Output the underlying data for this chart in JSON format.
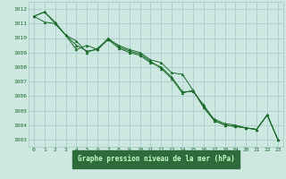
{
  "title": "Graphe pression niveau de la mer (hPa)",
  "bg_color": "#cce8e0",
  "plot_bg": "#cce8e0",
  "grid_color": "#aacccc",
  "line_color": "#1a6b2a",
  "marker_color": "#1a6b2a",
  "label_bg": "#2d6b3a",
  "label_fg": "#ccffcc",
  "xlim": [
    -0.5,
    23.5
  ],
  "ylim": [
    1002.5,
    1012.5
  ],
  "yticks": [
    1003,
    1004,
    1005,
    1006,
    1007,
    1008,
    1009,
    1010,
    1011,
    1012
  ],
  "xticks": [
    0,
    1,
    2,
    3,
    4,
    5,
    6,
    7,
    8,
    9,
    10,
    11,
    12,
    13,
    14,
    15,
    16,
    17,
    18,
    19,
    20,
    21,
    22,
    23
  ],
  "series": [
    [
      1011.5,
      1011.8,
      1011.1,
      1010.2,
      1009.8,
      1009.0,
      1009.3,
      1009.9,
      1009.5,
      1009.2,
      1009.0,
      1008.5,
      1008.3,
      1007.6,
      1007.5,
      1006.4,
      1005.3,
      1004.4,
      1004.1,
      1004.0,
      1003.8,
      1003.7,
      1004.7,
      1003.0
    ],
    [
      1011.5,
      1011.1,
      1011.0,
      1010.2,
      1009.5,
      1009.1,
      1009.2,
      1009.9,
      1009.3,
      1009.0,
      1008.8,
      1008.3,
      1008.0,
      1007.3,
      1006.3,
      1006.3,
      1005.4,
      1004.3,
      1004.0,
      1003.9,
      1003.8,
      1003.7,
      1004.7,
      1003.0
    ],
    [
      1011.5,
      1011.8,
      1011.0,
      1010.2,
      1009.2,
      1009.5,
      1009.2,
      1010.0,
      1009.4,
      1009.1,
      1008.9,
      1008.4,
      1007.9,
      1007.2,
      1006.2,
      1006.4,
      1005.2,
      1004.3,
      1004.0,
      1003.9,
      1003.8,
      1003.7,
      1004.7,
      1003.0
    ]
  ]
}
